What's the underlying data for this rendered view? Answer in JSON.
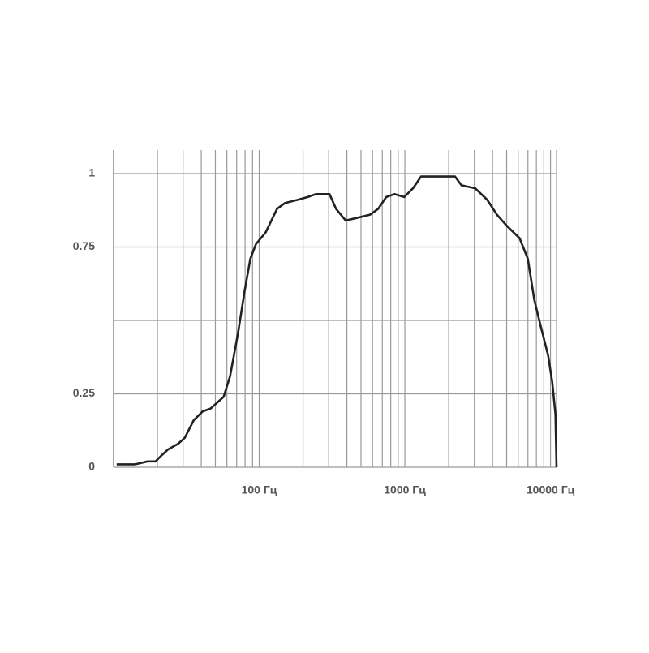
{
  "chart_data": {
    "type": "line",
    "log_x": true,
    "grid": true,
    "color": "#222222",
    "xlim": [
      10,
      11000
    ],
    "ylim": [
      0,
      1.08
    ],
    "xticks": [
      {
        "value": 20,
        "label": null
      },
      {
        "value": 30,
        "label": null
      },
      {
        "value": 40,
        "label": null
      },
      {
        "value": 50,
        "label": null
      },
      {
        "value": 60,
        "label": null
      },
      {
        "value": 70,
        "label": null
      },
      {
        "value": 80,
        "label": null
      },
      {
        "value": 90,
        "label": null
      },
      {
        "value": 100,
        "label": "100 Гц"
      },
      {
        "value": 200,
        "label": null
      },
      {
        "value": 300,
        "label": null
      },
      {
        "value": 400,
        "label": null
      },
      {
        "value": 500,
        "label": null
      },
      {
        "value": 600,
        "label": null
      },
      {
        "value": 700,
        "label": null
      },
      {
        "value": 800,
        "label": null
      },
      {
        "value": 900,
        "label": null
      },
      {
        "value": 1000,
        "label": "1000 Гц"
      },
      {
        "value": 2000,
        "label": null
      },
      {
        "value": 3000,
        "label": null
      },
      {
        "value": 4000,
        "label": null
      },
      {
        "value": 5000,
        "label": null
      },
      {
        "value": 6000,
        "label": null
      },
      {
        "value": 7000,
        "label": null
      },
      {
        "value": 8000,
        "label": null
      },
      {
        "value": 9000,
        "label": null
      },
      {
        "value": 10000,
        "label": "10000 Гц"
      }
    ],
    "yticks": [
      0,
      0.25,
      {
        "value": 0.5,
        "label": null
      },
      0.75,
      1
    ],
    "x": [
      10.5,
      12.4,
      14.1,
      17.1,
      19.4,
      21.3,
      23.6,
      27.8,
      30.8,
      35.5,
      40.9,
      46.4,
      51.4,
      57,
      63.1,
      71.7,
      79.4,
      86.9,
      95,
      110.8,
      132.6,
      150.6,
      182.4,
      215.4,
      245,
      285,
      304,
      337,
      393,
      476,
      577,
      656,
      745,
      848,
      990,
      1137,
      1292,
      1468,
      1711,
      1943,
      2212,
      2448,
      3039,
      3684,
      4285,
      5056,
      6137,
      6986,
      7743,
      8471,
      9640,
      10280,
      10820,
      11000
    ],
    "values": [
      0.01,
      0.01,
      0.01,
      0.02,
      0.02,
      0.04,
      0.06,
      0.08,
      0.1,
      0.16,
      0.19,
      0.2,
      0.22,
      0.24,
      0.31,
      0.46,
      0.6,
      0.71,
      0.76,
      0.8,
      0.88,
      0.9,
      0.91,
      0.92,
      0.93,
      0.93,
      0.93,
      0.88,
      0.84,
      0.85,
      0.86,
      0.88,
      0.92,
      0.93,
      0.92,
      0.95,
      0.99,
      0.99,
      0.99,
      0.99,
      0.99,
      0.96,
      0.95,
      0.91,
      0.86,
      0.82,
      0.78,
      0.71,
      0.57,
      0.49,
      0.38,
      0.29,
      0.18,
      0
    ]
  }
}
